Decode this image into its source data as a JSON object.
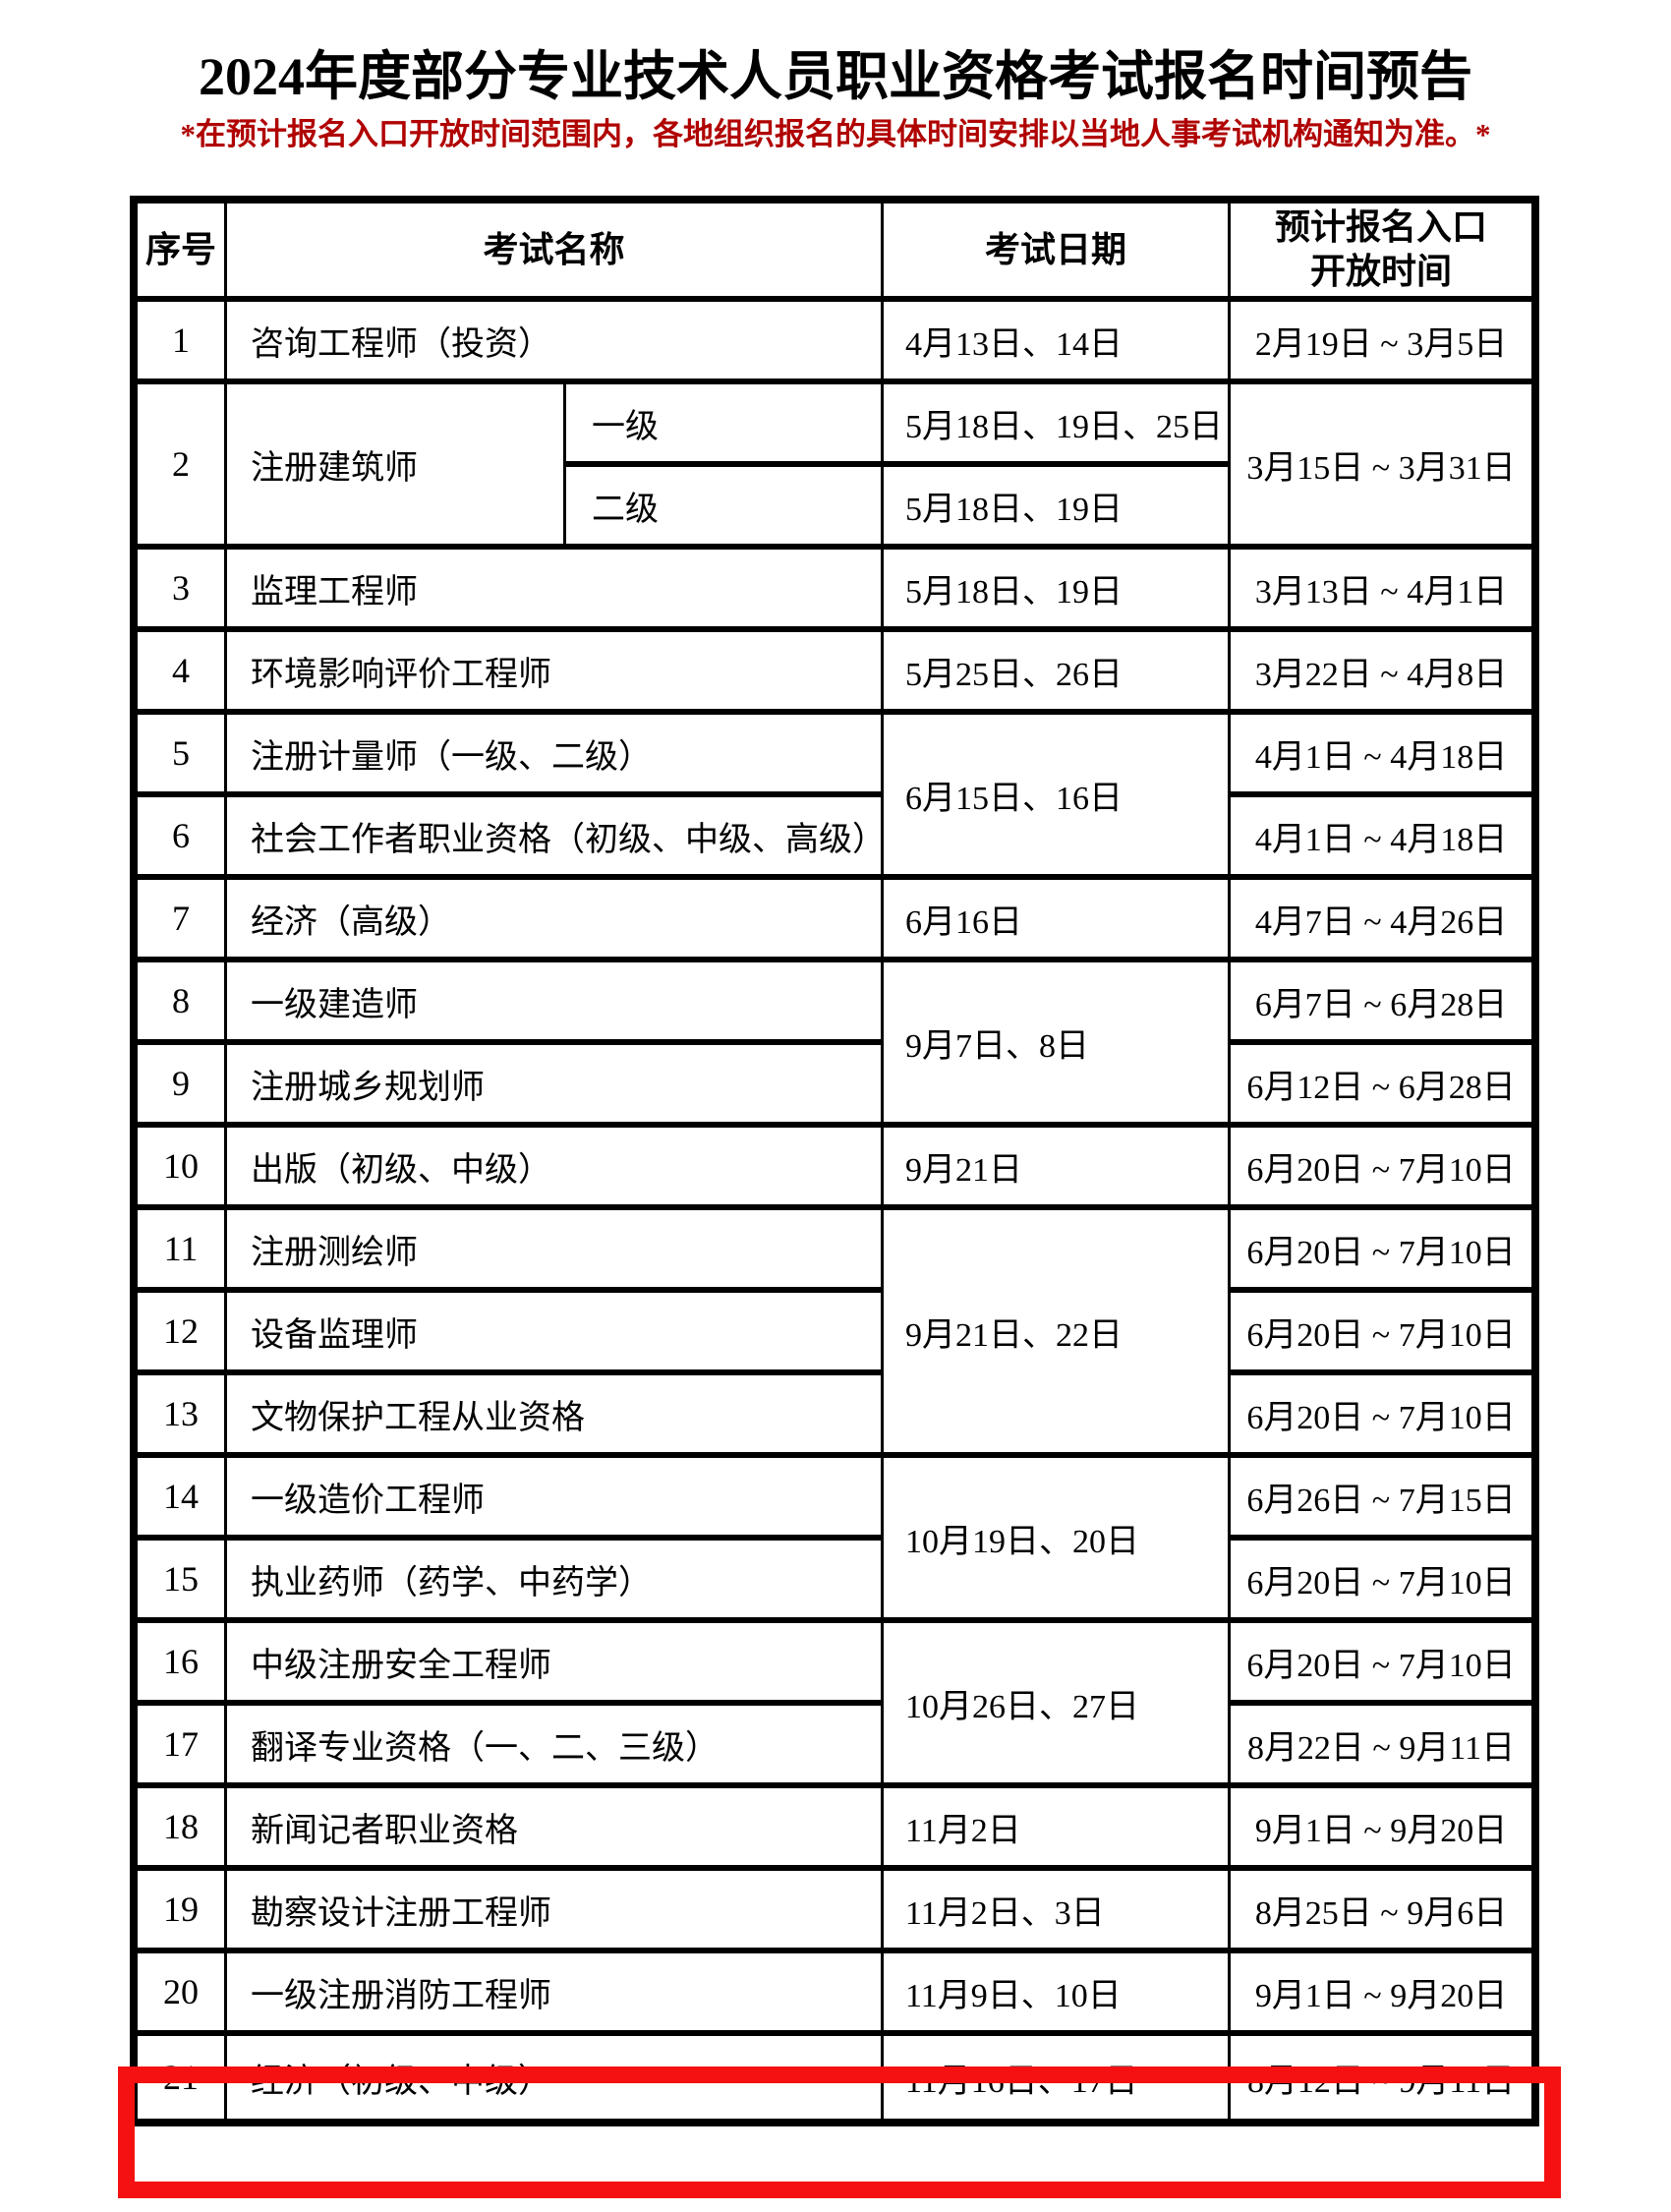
{
  "title": "2024年度部分专业技术人员职业资格考试报名时间预告",
  "notice": "*在预计报名入口开放时间范围内，各地组织报名的具体时间安排以当地人事考试机构通知为准。*",
  "colors": {
    "notice_red": "#b00000",
    "highlight_red": "#f51111",
    "border_black": "#000000"
  },
  "table": {
    "headers": {
      "index": "序号",
      "name": "考试名称",
      "date": "考试日期",
      "window": "预计报名入口\n开放时间"
    },
    "highlighted_row": "21",
    "rows": [
      {
        "no": "1",
        "name": "咨询工程师（投资）",
        "date": "4月13日、14日",
        "window": "2月19日 ~ 3月5日"
      },
      {
        "no": "2",
        "no_rowspan": 2,
        "name": "注册建筑师",
        "name_rowspan": 2,
        "sub": "一级",
        "date": "5月18日、19日、25日",
        "window": "3月15日 ~ 3月31日",
        "window_rowspan": 2
      },
      {
        "sub": "二级",
        "date": "5月18日、19日"
      },
      {
        "no": "3",
        "name": "监理工程师",
        "date": "5月18日、19日",
        "window": "3月13日 ~ 4月1日"
      },
      {
        "no": "4",
        "name": "环境影响评价工程师",
        "date": "5月25日、26日",
        "window": "3月22日 ~ 4月8日"
      },
      {
        "no": "5",
        "name": "注册计量师（一级、二级）",
        "date": "6月15日、16日",
        "date_rowspan": 2,
        "window": "4月1日 ~ 4月18日"
      },
      {
        "no": "6",
        "name": "社会工作者职业资格（初级、中级、高级）",
        "window": "4月1日 ~ 4月18日"
      },
      {
        "no": "7",
        "name": "经济（高级）",
        "date": "6月16日",
        "window": "4月7日 ~ 4月26日"
      },
      {
        "no": "8",
        "name": "一级建造师",
        "date": "9月7日、8日",
        "date_rowspan": 2,
        "window": "6月7日 ~ 6月28日"
      },
      {
        "no": "9",
        "name": "注册城乡规划师",
        "window": "6月12日 ~ 6月28日"
      },
      {
        "no": "10",
        "name": "出版（初级、中级）",
        "date": "9月21日",
        "window": "6月20日 ~ 7月10日"
      },
      {
        "no": "11",
        "name": "注册测绘师",
        "date": "9月21日、22日",
        "date_rowspan": 3,
        "window": "6月20日 ~ 7月10日"
      },
      {
        "no": "12",
        "name": "设备监理师",
        "window": "6月20日 ~ 7月10日"
      },
      {
        "no": "13",
        "name": "文物保护工程从业资格",
        "window": "6月20日 ~ 7月10日"
      },
      {
        "no": "14",
        "name": "一级造价工程师",
        "date": "10月19日、20日",
        "date_rowspan": 2,
        "window": "6月26日 ~ 7月15日"
      },
      {
        "no": "15",
        "name": "执业药师（药学、中药学）",
        "window": "6月20日 ~ 7月10日"
      },
      {
        "no": "16",
        "name": "中级注册安全工程师",
        "date": "10月26日、27日",
        "date_rowspan": 2,
        "window": "6月20日 ~ 7月10日"
      },
      {
        "no": "17",
        "name": "翻译专业资格（一、二、三级）",
        "window": "8月22日 ~ 9月11日"
      },
      {
        "no": "18",
        "name": "新闻记者职业资格",
        "date": "11月2日",
        "window": "9月1日 ~ 9月20日"
      },
      {
        "no": "19",
        "name": "勘察设计注册工程师",
        "date": "11月2日、3日",
        "window": "8月25日 ~ 9月6日"
      },
      {
        "no": "20",
        "name": "一级注册消防工程师",
        "date": "11月9日、10日",
        "window": "9月1日 ~ 9月20日"
      },
      {
        "no": "21",
        "name": "经济（初级、中级）",
        "date": "11月16日、17日",
        "window": "8月12日 ~ 9月11日",
        "highlight": true
      }
    ]
  }
}
